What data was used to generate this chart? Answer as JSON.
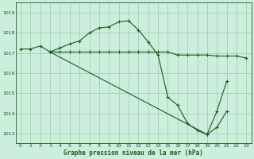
{
  "title": "Graphe pression niveau de la mer (hPa)",
  "bg_color": "#cceedd",
  "grid_color": "#aaccbb",
  "line_color": "#1a5c1a",
  "xlim": [
    -0.5,
    23.5
  ],
  "ylim": [
    1012.5,
    1019.5
  ],
  "yticks": [
    1013,
    1014,
    1015,
    1016,
    1017,
    1018,
    1019
  ],
  "xticks": [
    0,
    1,
    2,
    3,
    4,
    5,
    6,
    7,
    8,
    9,
    10,
    11,
    12,
    13,
    14,
    15,
    16,
    17,
    18,
    19,
    20,
    21,
    22,
    23
  ],
  "series": [
    {
      "x": [
        0,
        1,
        2,
        3,
        4,
        5,
        6,
        7,
        8,
        9,
        10,
        11,
        12,
        13,
        14,
        15,
        16,
        17,
        18,
        19,
        20,
        21,
        22,
        23
      ],
      "y": [
        1017.2,
        1017.2,
        1017.35,
        1017.05,
        1017.25,
        1017.45,
        1017.6,
        1018.0,
        1018.25,
        1018.3,
        1018.55,
        1018.6,
        1018.15,
        1017.55,
        1016.9,
        1014.8,
        1014.4,
        1013.5,
        1013.15,
        1012.95,
        1014.1,
        1015.6,
        null,
        null
      ]
    },
    {
      "x": [
        3,
        4,
        5,
        6,
        7,
        8,
        9,
        10,
        11,
        12,
        13,
        14,
        15,
        16,
        17,
        18,
        19,
        20,
        21,
        22,
        23
      ],
      "y": [
        1017.05,
        1017.05,
        1017.05,
        1017.05,
        1017.05,
        1017.05,
        1017.05,
        1017.05,
        1017.05,
        1017.05,
        1017.05,
        1017.05,
        1017.05,
        1016.9,
        1016.9,
        1016.9,
        1016.9,
        1016.85,
        1016.85,
        1016.85,
        1016.75
      ]
    },
    {
      "x": [
        3,
        19,
        20,
        21
      ],
      "y": [
        1017.05,
        1012.95,
        1013.3,
        1014.1
      ]
    }
  ]
}
